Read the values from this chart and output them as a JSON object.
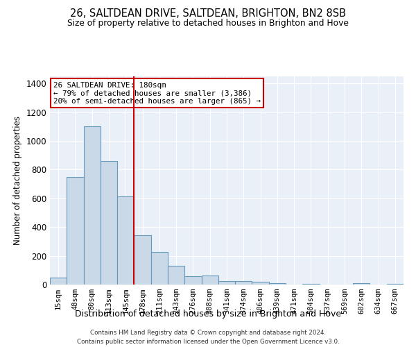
{
  "title_line1": "26, SALTDEAN DRIVE, SALTDEAN, BRIGHTON, BN2 8SB",
  "title_line2": "Size of property relative to detached houses in Brighton and Hove",
  "xlabel": "Distribution of detached houses by size in Brighton and Hove",
  "ylabel": "Number of detached properties",
  "footer_line1": "Contains HM Land Registry data © Crown copyright and database right 2024.",
  "footer_line2": "Contains public sector information licensed under the Open Government Licence v3.0.",
  "annotation_line1": "26 SALTDEAN DRIVE: 180sqm",
  "annotation_line2": "← 79% of detached houses are smaller (3,386)",
  "annotation_line3": "20% of semi-detached houses are larger (865) →",
  "bar_color": "#c9d9e8",
  "bar_edge_color": "#6699bb",
  "vline_color": "#cc0000",
  "annotation_box_color": "#ffffff",
  "annotation_box_edge": "#cc0000",
  "background_color": "#eaf0f8",
  "categories": [
    "15sqm",
    "48sqm",
    "80sqm",
    "113sqm",
    "145sqm",
    "178sqm",
    "211sqm",
    "243sqm",
    "276sqm",
    "308sqm",
    "341sqm",
    "374sqm",
    "406sqm",
    "439sqm",
    "471sqm",
    "504sqm",
    "537sqm",
    "569sqm",
    "602sqm",
    "634sqm",
    "667sqm"
  ],
  "values": [
    50,
    750,
    1100,
    860,
    615,
    345,
    225,
    130,
    60,
    65,
    25,
    25,
    20,
    10,
    0,
    5,
    0,
    0,
    10,
    0,
    5
  ],
  "ylim": [
    0,
    1450
  ],
  "yticks": [
    0,
    200,
    400,
    600,
    800,
    1000,
    1200,
    1400
  ],
  "vline_bin_index": 5
}
